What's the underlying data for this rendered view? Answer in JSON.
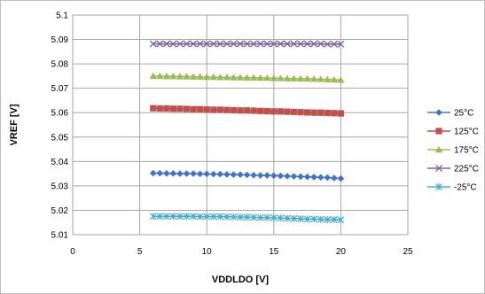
{
  "chart_data": {
    "type": "line",
    "title": "",
    "xlabel": "VDDLDO [V]",
    "ylabel": "VREF [V]",
    "xlim": [
      0,
      25
    ],
    "ylim": [
      5.01,
      5.1
    ],
    "xticks": [
      0,
      5,
      10,
      15,
      20,
      25
    ],
    "yticks": [
      5.01,
      5.02,
      5.03,
      5.04,
      5.05,
      5.06,
      5.07,
      5.08,
      5.09,
      5.1
    ],
    "grid": "horizontal and vertical",
    "legend_position": "right",
    "x": [
      6,
      6.5,
      7,
      7.5,
      8,
      8.5,
      9,
      9.5,
      10,
      10.5,
      11,
      11.5,
      12,
      12.5,
      13,
      13.5,
      14,
      14.5,
      15,
      15.5,
      16,
      16.5,
      17,
      17.5,
      18,
      18.5,
      19,
      19.5,
      20
    ],
    "series": [
      {
        "name": "25°C",
        "color": "#4472c4",
        "marker": "diamond",
        "values": [
          5.0352,
          5.0352,
          5.0351,
          5.0351,
          5.035,
          5.035,
          5.035,
          5.0349,
          5.0349,
          5.0348,
          5.0348,
          5.0347,
          5.0346,
          5.0346,
          5.0345,
          5.0344,
          5.0343,
          5.0343,
          5.0342,
          5.0341,
          5.034,
          5.0339,
          5.0338,
          5.0337,
          5.0336,
          5.0335,
          5.0334,
          5.0332,
          5.033
        ]
      },
      {
        "name": "125°C",
        "color": "#c0504d",
        "marker": "square",
        "values": [
          5.0618,
          5.0617,
          5.0617,
          5.0616,
          5.0616,
          5.0615,
          5.0614,
          5.0614,
          5.0613,
          5.0612,
          5.0612,
          5.0611,
          5.061,
          5.0609,
          5.0609,
          5.0608,
          5.0607,
          5.0606,
          5.0605,
          5.0605,
          5.0604,
          5.0603,
          5.0602,
          5.0601,
          5.06,
          5.06,
          5.0599,
          5.0598,
          5.0597
        ]
      },
      {
        "name": "175°C",
        "color": "#9bbb59",
        "marker": "triangle",
        "values": [
          5.075,
          5.075,
          5.0749,
          5.0749,
          5.0748,
          5.0748,
          5.0747,
          5.0747,
          5.0746,
          5.0746,
          5.0745,
          5.0745,
          5.0744,
          5.0744,
          5.0743,
          5.0743,
          5.0742,
          5.0742,
          5.0741,
          5.0741,
          5.074,
          5.074,
          5.0739,
          5.0739,
          5.0738,
          5.0737,
          5.0736,
          5.0735,
          5.0734
        ]
      },
      {
        "name": "225°C",
        "color": "#8064a2",
        "marker": "x",
        "values": [
          5.0882,
          5.0882,
          5.0882,
          5.0882,
          5.0882,
          5.0882,
          5.0882,
          5.0882,
          5.0882,
          5.0882,
          5.0882,
          5.0882,
          5.0882,
          5.0882,
          5.0882,
          5.0882,
          5.0882,
          5.0882,
          5.0882,
          5.0882,
          5.0882,
          5.0882,
          5.0882,
          5.0882,
          5.0882,
          5.0882,
          5.0881,
          5.0881,
          5.0881
        ]
      },
      {
        "name": "-25°C",
        "color": "#4bacc6",
        "marker": "star",
        "values": [
          5.0175,
          5.0175,
          5.0175,
          5.0175,
          5.0175,
          5.0175,
          5.0175,
          5.0174,
          5.0174,
          5.0174,
          5.0174,
          5.0173,
          5.0173,
          5.0172,
          5.0172,
          5.0171,
          5.017,
          5.017,
          5.0169,
          5.0168,
          5.0167,
          5.0166,
          5.0165,
          5.0164,
          5.0164,
          5.0163,
          5.0162,
          5.0162,
          5.0161
        ]
      }
    ]
  }
}
